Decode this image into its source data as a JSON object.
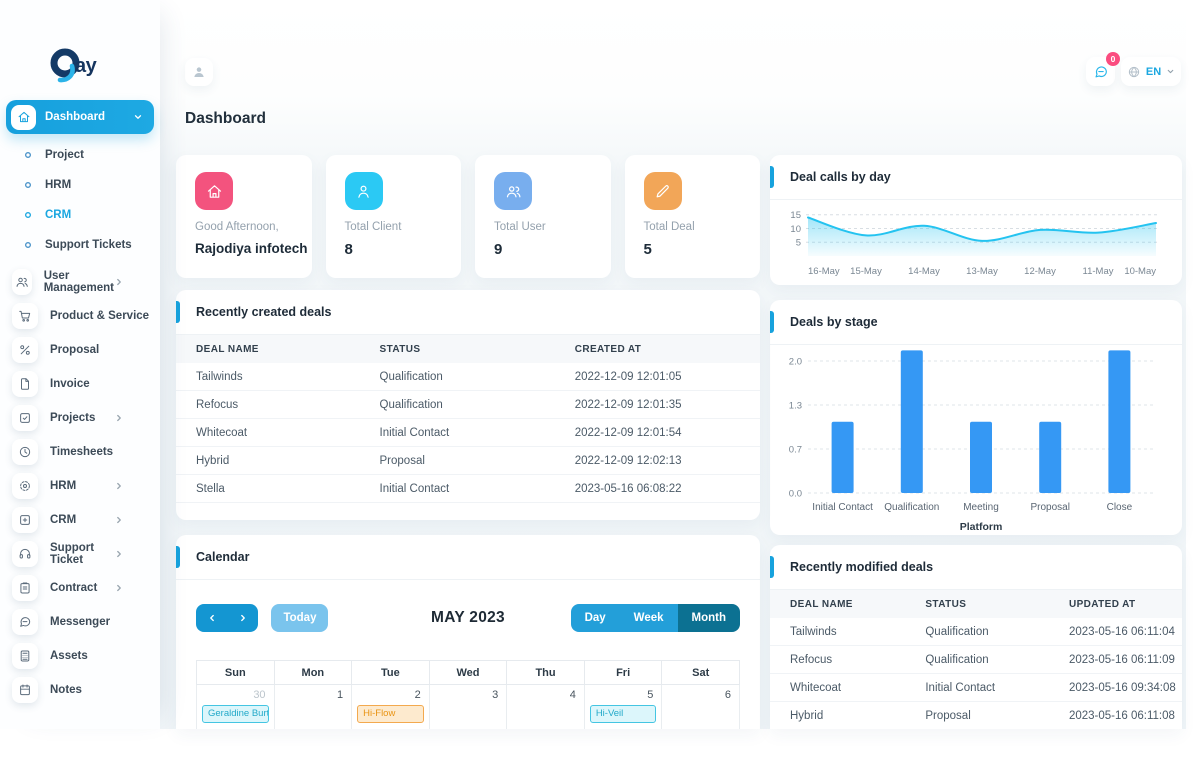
{
  "page_title": "Dashboard",
  "brand": {
    "text": "ay"
  },
  "topbar": {
    "language": "EN",
    "message_badge": "0"
  },
  "sidebar": {
    "dashboard": {
      "label": "Dashboard"
    },
    "sub_items": [
      {
        "label": "Project",
        "active": false
      },
      {
        "label": "HRM",
        "active": false
      },
      {
        "label": "CRM",
        "active": true
      },
      {
        "label": "Support Tickets",
        "active": false
      }
    ],
    "items": [
      {
        "label": "User Management",
        "icon": "users-icon",
        "chevron": true
      },
      {
        "label": "Product & Service",
        "icon": "cart-icon",
        "chevron": false
      },
      {
        "label": "Proposal",
        "icon": "percent-icon",
        "chevron": false
      },
      {
        "label": "Invoice",
        "icon": "file-icon",
        "chevron": false
      },
      {
        "label": "Projects",
        "icon": "check-square-icon",
        "chevron": true
      },
      {
        "label": "Timesheets",
        "icon": "clock-icon",
        "chevron": false
      },
      {
        "label": "HRM",
        "icon": "target-icon",
        "chevron": true
      },
      {
        "label": "CRM",
        "icon": "square-plus-icon",
        "chevron": true
      },
      {
        "label": "Support Ticket",
        "icon": "headset-icon",
        "chevron": true
      },
      {
        "label": "Contract",
        "icon": "clipboard-icon",
        "chevron": true
      },
      {
        "label": "Messenger",
        "icon": "chat-icon",
        "chevron": false
      },
      {
        "label": "Assets",
        "icon": "calculator-icon",
        "chevron": false
      },
      {
        "label": "Notes",
        "icon": "notebook-icon",
        "chevron": false
      }
    ]
  },
  "stats": [
    {
      "icon": "home-icon",
      "color": "#f3537e",
      "label": "Good Afternoon,",
      "value": "Rajodiya infotech",
      "text_value": true
    },
    {
      "icon": "user-icon",
      "color": "#2bc9f4",
      "label": "Total Client",
      "value": "8",
      "text_value": false
    },
    {
      "icon": "users-icon",
      "color": "#78aeee",
      "label": "Total User",
      "value": "9",
      "text_value": false
    },
    {
      "icon": "pencil-icon",
      "color": "#f2a658",
      "label": "Total Deal",
      "value": "5",
      "text_value": false
    }
  ],
  "chart_data": [
    {
      "type": "area",
      "title": "Deal calls by day",
      "x": [
        "16-May",
        "15-May",
        "14-May",
        "13-May",
        "12-May",
        "11-May",
        "10-May"
      ],
      "values": [
        14,
        7.5,
        11,
        5.5,
        9.5,
        8.5,
        12
      ],
      "yticks": [
        15,
        10,
        5
      ],
      "ylim": [
        0,
        16
      ],
      "grid": "dashed horizontal",
      "legend": "none",
      "line_color": "#24c3f0"
    },
    {
      "type": "bar",
      "title": "Deals by stage",
      "categories": [
        "Initial Contact",
        "Qualification",
        "Meeting",
        "Proposal",
        "Close"
      ],
      "values": [
        1,
        2,
        1,
        1,
        2
      ],
      "ytick_labels": [
        "2.0",
        "1.3",
        "0.7",
        "0.0"
      ],
      "ylim": [
        0,
        2
      ],
      "xlabel": "Platform",
      "grid": "dashed horizontal",
      "legend": "none",
      "bar_color": "#3598f4"
    }
  ],
  "created_deals": {
    "title": "Recently created deals",
    "columns": [
      "DEAL NAME",
      "STATUS",
      "CREATED AT"
    ],
    "rows": [
      [
        "Tailwinds",
        "Qualification",
        "2022-12-09 12:01:05"
      ],
      [
        "Refocus",
        "Qualification",
        "2022-12-09 12:01:35"
      ],
      [
        "Whitecoat",
        "Initial Contact",
        "2022-12-09 12:01:54"
      ],
      [
        "Hybrid",
        "Proposal",
        "2022-12-09 12:02:13"
      ],
      [
        "Stella",
        "Initial Contact",
        "2023-05-16 06:08:22"
      ]
    ]
  },
  "modified_deals": {
    "title": "Recently modified deals",
    "columns": [
      "DEAL NAME",
      "STATUS",
      "UPDATED AT"
    ],
    "rows": [
      [
        "Tailwinds",
        "Qualification",
        "2023-05-16 06:11:04"
      ],
      [
        "Refocus",
        "Qualification",
        "2023-05-16 06:11:09"
      ],
      [
        "Whitecoat",
        "Initial Contact",
        "2023-05-16 09:34:08"
      ],
      [
        "Hybrid",
        "Proposal",
        "2023-05-16 06:11:08"
      ]
    ]
  },
  "calendar": {
    "title": "Calendar",
    "today_label": "Today",
    "month_label": "MAY 2023",
    "views": [
      {
        "label": "Day",
        "active": false
      },
      {
        "label": "Week",
        "active": false
      },
      {
        "label": "Month",
        "active": true
      }
    ],
    "day_headers": [
      "Sun",
      "Mon",
      "Tue",
      "Wed",
      "Thu",
      "Fri",
      "Sat"
    ],
    "dates": [
      {
        "day": "30",
        "muted": true
      },
      {
        "day": "1",
        "muted": false
      },
      {
        "day": "2",
        "muted": false
      },
      {
        "day": "3",
        "muted": false
      },
      {
        "day": "4",
        "muted": false
      },
      {
        "day": "5",
        "muted": false
      },
      {
        "day": "6",
        "muted": false
      }
    ],
    "events": [
      {
        "col": 0,
        "label": "Geraldine Burt",
        "color": "cyan"
      },
      {
        "col": 2,
        "label": "Hi-Flow",
        "color": "orange"
      },
      {
        "col": 5,
        "label": "Hi-Veil",
        "color": "cyan"
      }
    ],
    "event_colors": {
      "cyan": {
        "bg": "#dcf6fb",
        "border": "#44c5e2",
        "text": "#23a9c9"
      },
      "orange": {
        "bg": "#fdeace",
        "border": "#f3a94e",
        "text": "#e99414"
      }
    }
  },
  "accent_color": "#17a2dd"
}
